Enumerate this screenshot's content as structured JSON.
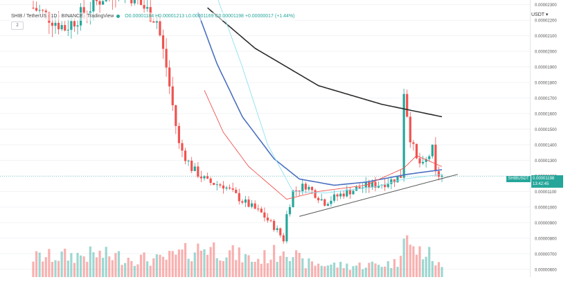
{
  "legend": {
    "symbol": "SHIB / TetherUS · 1D · BINANCE · TradingView",
    "ohlc": "O0.00001184 H0.00001213 L0.00001169 C0.00001198 +0.00000017 (+1.44%)"
  },
  "indicator_count": "2",
  "currency": "USDT ▾",
  "last_price": {
    "symbol": "SHIBUSDT",
    "value": "0.00001198",
    "countdown": "13:42:45"
  },
  "colors": {
    "up": "#26a69a",
    "down": "#ef5350",
    "ma_slow": "#2b2b2b",
    "ma_mid": "#4a6fc0",
    "ma_fast": "#ef5350",
    "ma_cyan": "#8fe0f0",
    "trendline": "#555555"
  },
  "chart_data": {
    "type": "candlestick",
    "title": "SHIB / TetherUS · 1D · BINANCE",
    "ylabel": "USDT",
    "ylim": [
      5.5e-06,
      2.33e-05
    ],
    "y_ticks": [
      "0.00002300",
      "0.00002200",
      "0.00002100",
      "0.00002000",
      "0.00001900",
      "0.00001800",
      "0.00001700",
      "0.00001600",
      "0.00001500",
      "0.00001400",
      "0.00001300",
      "0.00001200",
      "0.00001100",
      "0.00001000",
      "0.00000900",
      "0.00000800",
      "0.00000700",
      "0.00000600"
    ],
    "n_candles": 130,
    "anchors_close": [
      [
        0,
        2.28e-05
      ],
      [
        5,
        2.22e-05
      ],
      [
        10,
        2.15e-05
      ],
      [
        16,
        2.25e-05
      ],
      [
        22,
        2.35e-05
      ],
      [
        28,
        2.42e-05
      ],
      [
        34,
        2.3e-05
      ],
      [
        39,
        2.2e-05
      ],
      [
        42,
        1.9e-05
      ],
      [
        46,
        1.4e-05
      ],
      [
        50,
        1.25e-05
      ],
      [
        55,
        1.16e-05
      ],
      [
        60,
        1.14e-05
      ],
      [
        66,
        1.04e-05
      ],
      [
        72,
        9.6e-06
      ],
      [
        77,
        8.5e-06
      ],
      [
        79,
        7.9e-06
      ],
      [
        80,
        9.5e-06
      ],
      [
        82,
        1.1e-05
      ],
      [
        86,
        1.14e-05
      ],
      [
        92,
        1.03e-05
      ],
      [
        98,
        1.09e-05
      ],
      [
        104,
        1.13e-05
      ],
      [
        110,
        1.15e-05
      ],
      [
        113,
        1.17e-05
      ],
      [
        116,
        1.2e-05
      ],
      [
        117,
        1.75e-05
      ],
      [
        119,
        1.45e-05
      ],
      [
        121,
        1.3e-05
      ],
      [
        123,
        1.26e-05
      ],
      [
        126,
        1.37e-05
      ],
      [
        127,
        1.21e-05
      ],
      [
        129,
        1.198e-05
      ]
    ],
    "anchors_volume": [
      [
        0,
        0.35
      ],
      [
        20,
        0.4
      ],
      [
        40,
        0.3
      ],
      [
        55,
        0.55
      ],
      [
        70,
        0.3
      ],
      [
        78,
        0.45
      ],
      [
        79,
        0.6
      ],
      [
        85,
        0.25
      ],
      [
        100,
        0.2
      ],
      [
        115,
        0.25
      ],
      [
        117,
        1.0
      ],
      [
        119,
        0.5
      ],
      [
        125,
        0.4
      ],
      [
        129,
        0.15
      ]
    ],
    "moving_averages": [
      {
        "name": "MA slow",
        "anchors": [
          [
            55,
            2.28e-05
          ],
          [
            70,
            2.02e-05
          ],
          [
            90,
            1.78e-05
          ],
          [
            110,
            1.66e-05
          ],
          [
            129,
            1.58e-05
          ]
        ]
      },
      {
        "name": "MA mid",
        "anchors": [
          [
            52,
            2.25e-05
          ],
          [
            58,
            1.92e-05
          ],
          [
            66,
            1.58e-05
          ],
          [
            76,
            1.31e-05
          ],
          [
            84,
            1.18e-05
          ],
          [
            95,
            1.14e-05
          ],
          [
            105,
            1.16e-05
          ],
          [
            118,
            1.21e-05
          ],
          [
            129,
            1.24e-05
          ]
        ]
      },
      {
        "name": "MA fast",
        "anchors": [
          [
            54,
            1.75e-05
          ],
          [
            60,
            1.48e-05
          ],
          [
            68,
            1.26e-05
          ],
          [
            80,
            1.05e-05
          ],
          [
            90,
            1.1e-05
          ],
          [
            105,
            1.14e-05
          ],
          [
            117,
            1.25e-05
          ],
          [
            121,
            1.33e-05
          ],
          [
            129,
            1.26e-05
          ]
        ]
      },
      {
        "name": "MA cyan",
        "anchors": [
          [
            58,
            2.35e-05
          ],
          [
            66,
            1.9e-05
          ],
          [
            74,
            1.4e-05
          ],
          [
            82,
            1.1e-05
          ],
          [
            92,
            1.09e-05
          ],
          [
            108,
            1.13e-05
          ],
          [
            117,
            1.18e-05
          ],
          [
            129,
            1.21e-05
          ]
        ]
      }
    ],
    "trendline": [
      [
        84,
        9.4e-06
      ],
      [
        134,
        1.21e-05
      ]
    ]
  }
}
